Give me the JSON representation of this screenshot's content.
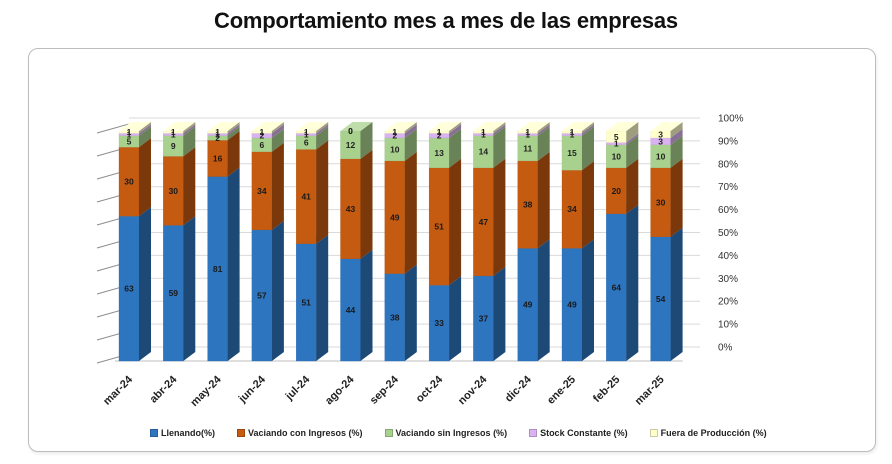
{
  "title": "Comportamiento mes a mes de las empresas",
  "chart_data": {
    "type": "bar",
    "stacked": true,
    "three_d": true,
    "categories": [
      "mar-24",
      "abr-24",
      "may-24",
      "jun-24",
      "jul-24",
      "ago-24",
      "sep-24",
      "oct-24",
      "nov-24",
      "dic-24",
      "ene-25",
      "feb-25",
      "mar-25"
    ],
    "series": [
      {
        "name": "Llenando(%)",
        "color": "#2E75C0",
        "values": [
          63,
          59,
          81,
          57,
          51,
          44,
          38,
          33,
          37,
          49,
          49,
          64,
          54
        ]
      },
      {
        "name": "Vaciando con Ingresos (%)",
        "color": "#C55A11",
        "values": [
          30,
          30,
          16,
          34,
          41,
          43,
          49,
          51,
          47,
          38,
          34,
          20,
          30
        ]
      },
      {
        "name": "Vaciando sin Ingresos (%)",
        "color": "#A9D18E",
        "values": [
          5,
          9,
          2,
          6,
          6,
          12,
          10,
          13,
          14,
          11,
          15,
          10,
          10
        ]
      },
      {
        "name": "Stock Constante (%)",
        "color": "#D9B3F0",
        "values": [
          1,
          1,
          1,
          2,
          1,
          0,
          2,
          2,
          1,
          1,
          1,
          1,
          3
        ]
      },
      {
        "name": "Fuera de Producción (%)",
        "color": "#FFFFCC",
        "values": [
          1,
          1,
          1,
          1,
          1,
          0,
          1,
          1,
          1,
          1,
          1,
          5,
          3
        ]
      }
    ],
    "yticks": [
      "0%",
      "10%",
      "20%",
      "30%",
      "40%",
      "50%",
      "60%",
      "70%",
      "80%",
      "90%",
      "100%"
    ],
    "ylim": [
      0,
      100
    ],
    "legend_position": "bottom"
  }
}
